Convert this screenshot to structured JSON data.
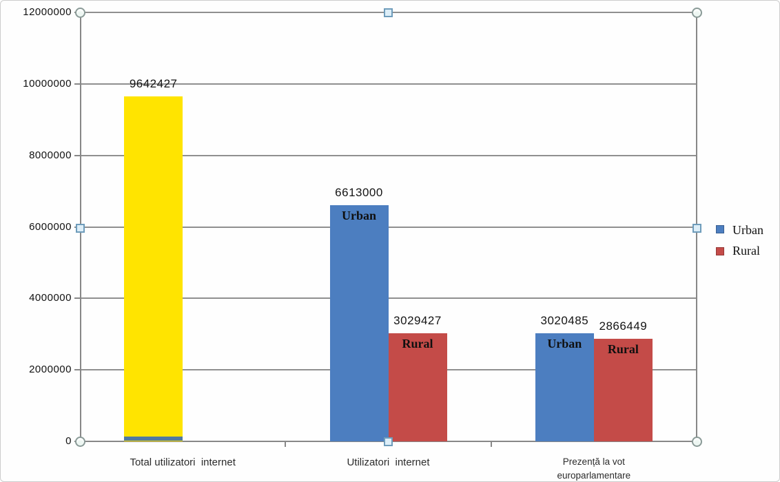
{
  "chart_data": {
    "type": "bar",
    "title": "",
    "categories": [
      "Total utilizatori  internet",
      "Utilizatori  internet",
      "Prezență la vot\neuroparlamentare"
    ],
    "series": [
      {
        "name": "Urban",
        "color": "#4c7ec0",
        "values": [
          9642427,
          6613000,
          3020485
        ],
        "point_colors": [
          "#ffe400",
          null,
          null
        ],
        "inside_labels": [
          null,
          "Urban",
          "Urban"
        ]
      },
      {
        "name": "Rural",
        "color": "#c44b48",
        "values": [
          null,
          3029427,
          2866449
        ],
        "point_colors": [
          null,
          null,
          null
        ],
        "inside_labels": [
          null,
          "Rural",
          "Rural"
        ]
      }
    ],
    "data_labels": [
      "9642427",
      "6613000",
      "3029427",
      "3020485",
      "2866449"
    ],
    "y_axis": {
      "min": 0,
      "max": 12000000,
      "tick_step": 2000000,
      "tick_labels": [
        "0",
        "2000000",
        "4000000",
        "6000000",
        "8000000",
        "10000000",
        "12000000"
      ]
    },
    "x_axis_label": "",
    "y_axis_label": "",
    "grid": true,
    "legend": {
      "position": "right",
      "items": [
        {
          "label": "Urban",
          "color": "#4c7ec0"
        },
        {
          "label": "Rural",
          "color": "#c44b48"
        }
      ]
    },
    "first_bar_base_strip_color": "#5078a0",
    "selection_handles_visible": true
  },
  "colors": {
    "axis": "#878787",
    "gridline": "#8f8f8f",
    "plot_background": "#fefefe"
  }
}
